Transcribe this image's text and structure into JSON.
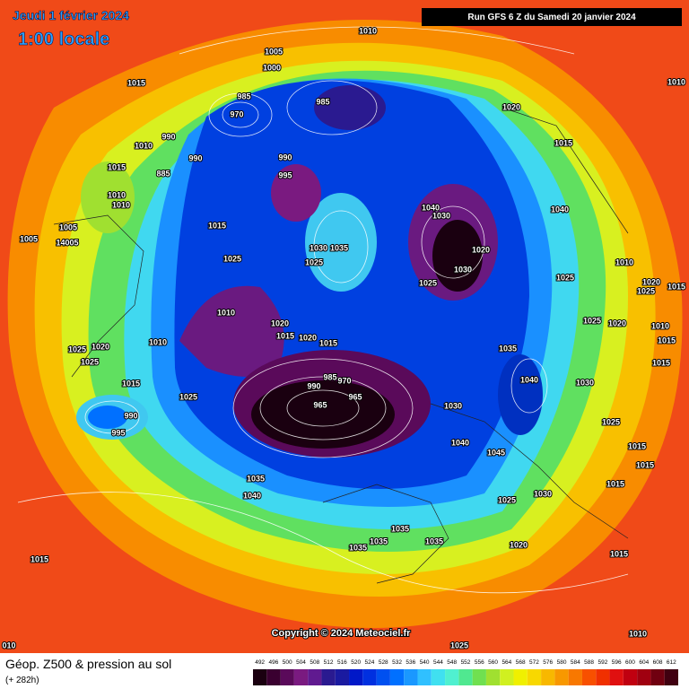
{
  "header": {
    "date": "Jeudi 1 février 2024",
    "local_time": "1:00 locale",
    "run": "Run GFS 6 Z du Samedi 20 janvier 2024"
  },
  "map": {
    "pressure_labels": [
      "1010",
      "1005",
      "1000",
      "1015",
      "985",
      "970",
      "985",
      "1020",
      "1010",
      "990",
      "990",
      "885",
      "990",
      "995",
      "1015",
      "1015",
      "1010",
      "1010",
      "1040",
      "1030",
      "1040",
      "1015",
      "1005",
      "1005",
      "14005",
      "1035",
      "1030",
      "1020",
      "1030",
      "1025",
      "1025",
      "1010",
      "1025",
      "1025",
      "1020",
      "1025",
      "1015",
      "1010",
      "1020",
      "1025",
      "1020",
      "1010",
      "1015",
      "1020",
      "1015",
      "1010",
      "1020",
      "1025",
      "1025",
      "1035",
      "1015",
      "1015",
      "985",
      "970",
      "1040",
      "1030",
      "1015",
      "1025",
      "990",
      "965",
      "965",
      "990",
      "995",
      "1030",
      "1025",
      "1040",
      "1045",
      "1015",
      "1015",
      "1035",
      "1040",
      "1025",
      "1030",
      "1015",
      "1035",
      "1035",
      "1035",
      "1035",
      "1020",
      "1015",
      "1015",
      "1010",
      "1025",
      "010",
      "1010"
    ],
    "copyright": "Copyright © 2024 Meteociel.fr"
  },
  "footer": {
    "title": "Géop. Z500 & pression au sol",
    "forecast": "(+ 282h)"
  },
  "legend": {
    "labels": [
      492,
      496,
      500,
      504,
      508,
      512,
      516,
      520,
      524,
      528,
      532,
      536,
      540,
      544,
      548,
      552,
      556,
      560,
      564,
      568,
      572,
      576,
      580,
      584,
      588,
      592,
      596,
      600,
      604,
      608,
      612
    ],
    "colors": [
      "#1a0010",
      "#3a0030",
      "#5a0a5a",
      "#7a1a80",
      "#601a90",
      "#2a1a90",
      "#1a1aa0",
      "#0018c8",
      "#0030e0",
      "#0050f0",
      "#0070ff",
      "#1a98ff",
      "#30c0ff",
      "#40e0f0",
      "#50f0d0",
      "#50e890",
      "#70e050",
      "#a0e030",
      "#d0f020",
      "#f0f000",
      "#f8d800",
      "#f8b800",
      "#f89800",
      "#f87800",
      "#f85000",
      "#f03000",
      "#e01010",
      "#c00010",
      "#a00010",
      "#700010",
      "#400010"
    ]
  }
}
